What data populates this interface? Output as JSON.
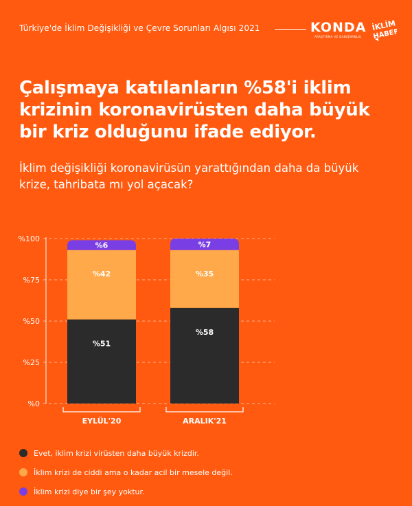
{
  "header": {
    "report_title": "Türkiye'de İklim Değişikliği ve Çevre Sorunları Algısı 2021",
    "konda_logo": "KONDA",
    "konda_sub": "ARAŞTIRMA VE DANIŞMANLIK",
    "iklim_logo_line1": "İKLİM",
    "iklim_logo_line2": "HABER"
  },
  "headline": "Çalışmaya katılanların %58'i iklim krizinin koronavirüsten daha büyük bir kriz olduğunu ifade ediyor.",
  "question": "İklim değişikliği koronavirüsün yarattığından daha da büyük krize, tahribata mı yol açacak?",
  "colors": {
    "background": "#ff5a0f",
    "yes": "#2b2b2b",
    "serious": "#ffa94a",
    "none": "#7a3fe4"
  },
  "chart_data": {
    "type": "bar",
    "stacked": true,
    "categories": [
      "EYLÜL'20",
      "ARALIK'21"
    ],
    "series": [
      {
        "name": "Evet, iklim krizi virüsten daha büyük krizdir.",
        "values": [
          51,
          58
        ],
        "labels": [
          "%51",
          "%58"
        ],
        "color_key": "yes"
      },
      {
        "name": "İklim krizi de ciddi ama o kadar acil bir mesele değil.",
        "values": [
          42,
          35
        ],
        "labels": [
          "%42",
          "%35"
        ],
        "color_key": "serious"
      },
      {
        "name": "İklim krizi diye bir şey yoktur.",
        "values": [
          6,
          7
        ],
        "labels": [
          "%6",
          "%7"
        ],
        "color_key": "none"
      }
    ],
    "ylim": [
      0,
      100
    ],
    "yticks": [
      0,
      25,
      50,
      75,
      100
    ],
    "ytick_labels": [
      "%0",
      "%25",
      "%50",
      "%75",
      "%100"
    ],
    "grid": true,
    "legend_position": "bottom"
  }
}
